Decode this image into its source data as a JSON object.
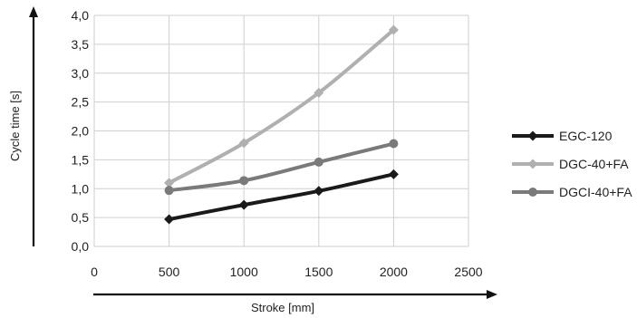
{
  "chart_data": {
    "type": "line",
    "xlabel": "Stroke [mm]",
    "ylabel": "Cycle time [s]",
    "xlim": [
      0,
      2500
    ],
    "ylim": [
      0,
      4
    ],
    "x_ticks": [
      "0",
      "500",
      "1000",
      "1500",
      "2000",
      "2500"
    ],
    "y_ticks": [
      "0,0",
      "0,5",
      "1,0",
      "1,5",
      "2,0",
      "2,5",
      "3,0",
      "3,5",
      "4,0"
    ],
    "grid": "vertical and horizontal",
    "legend_position": "right",
    "series": [
      {
        "name": "EGC-120",
        "color": "#1a1a1a",
        "marker": "diamond",
        "x": [
          500,
          1000,
          1500,
          2000
        ],
        "values": [
          0.47,
          0.72,
          0.96,
          1.25
        ]
      },
      {
        "name": "DGC-40+FA",
        "color": "#b0b0b0",
        "marker": "diamond",
        "x": [
          500,
          1000,
          1500,
          2000
        ],
        "values": [
          1.1,
          1.79,
          2.66,
          3.75
        ]
      },
      {
        "name": "DGCI-40+FA",
        "color": "#7a7a7a",
        "marker": "circle",
        "x": [
          500,
          1000,
          1500,
          2000
        ],
        "values": [
          0.97,
          1.14,
          1.46,
          1.78
        ]
      }
    ]
  }
}
